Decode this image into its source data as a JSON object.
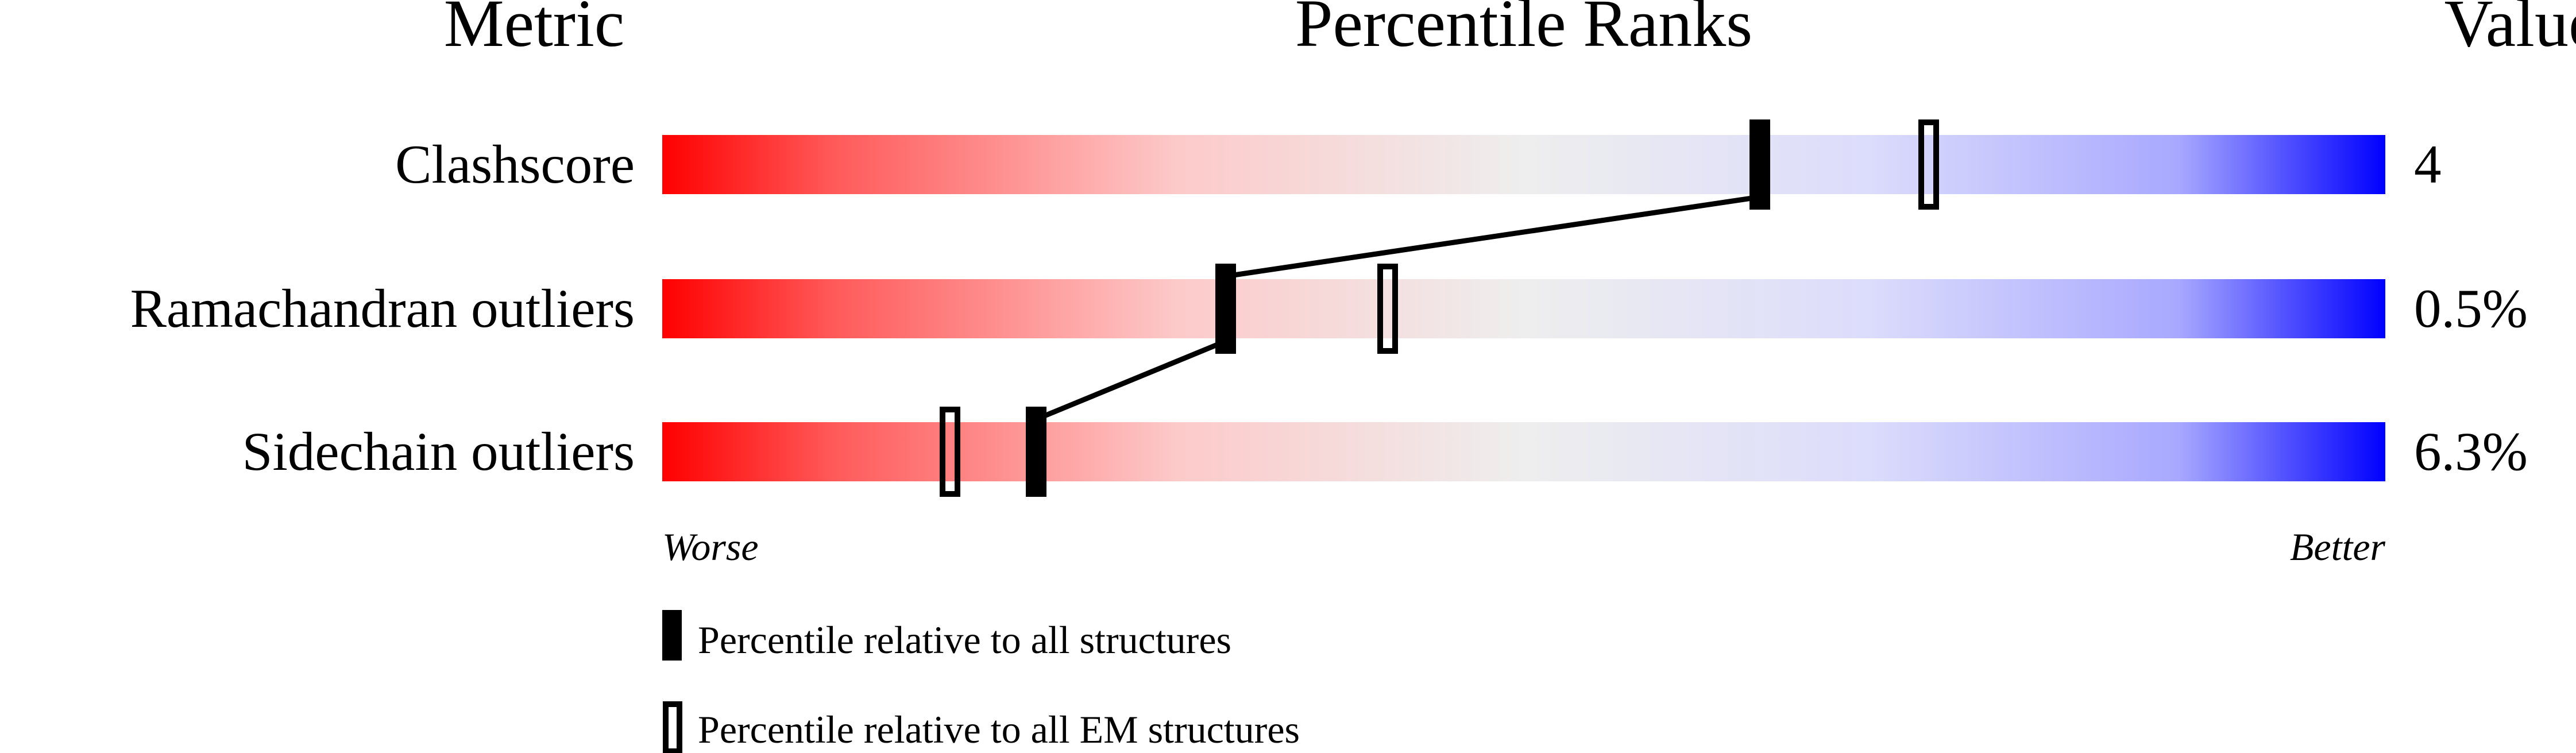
{
  "chart_data": {
    "type": "percentile-slider",
    "headers": {
      "metric": "Metric",
      "ranks": "Percentile Ranks",
      "value": "Value"
    },
    "axis": {
      "worse": "Worse",
      "better": "Better",
      "range": [
        0,
        100
      ]
    },
    "metrics": [
      {
        "label": "Clashscore",
        "value": "4",
        "percentile_all": 63.7,
        "percentile_em": 73.5
      },
      {
        "label": "Ramachandran outliers",
        "value": "0.5%",
        "percentile_all": 32.7,
        "percentile_em": 42.1
      },
      {
        "label": "Sidechain outliers",
        "value": "6.3%",
        "percentile_all": 21.7,
        "percentile_em": 16.7
      }
    ],
    "legend": {
      "all": "Percentile relative to all structures",
      "em": "Percentile relative to all EM structures"
    },
    "colors": {
      "worse": "#ff0000",
      "middle": "#eeeeee",
      "better": "#0000ff",
      "marker": "#000000"
    }
  }
}
